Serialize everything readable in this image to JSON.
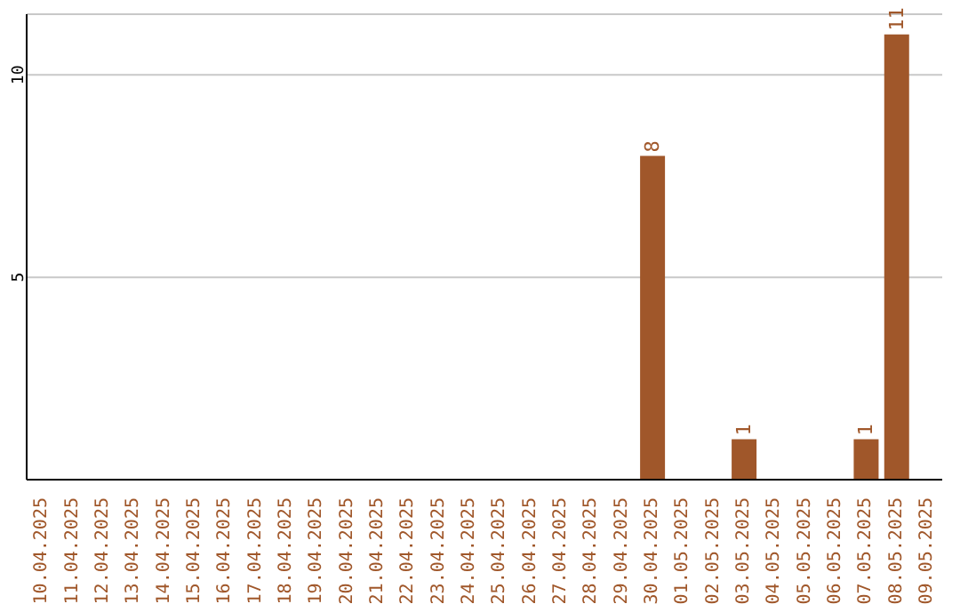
{
  "chart_data": {
    "type": "bar",
    "categories": [
      "10.04.2025",
      "11.04.2025",
      "12.04.2025",
      "13.04.2025",
      "14.04.2025",
      "15.04.2025",
      "16.04.2025",
      "17.04.2025",
      "18.04.2025",
      "19.04.2025",
      "20.04.2025",
      "21.04.2025",
      "22.04.2025",
      "23.04.2025",
      "24.04.2025",
      "25.04.2025",
      "26.04.2025",
      "27.04.2025",
      "28.04.2025",
      "29.04.2025",
      "30.04.2025",
      "01.05.2025",
      "02.05.2025",
      "03.05.2025",
      "04.05.2025",
      "05.05.2025",
      "06.05.2025",
      "07.05.2025",
      "08.05.2025",
      "09.05.2025"
    ],
    "values": [
      0,
      0,
      0,
      0,
      0,
      0,
      0,
      0,
      0,
      0,
      0,
      0,
      0,
      0,
      0,
      0,
      0,
      0,
      0,
      0,
      8,
      0,
      0,
      1,
      0,
      0,
      0,
      1,
      11,
      0
    ],
    "value_labels": [
      null,
      null,
      null,
      null,
      null,
      null,
      null,
      null,
      null,
      null,
      null,
      null,
      null,
      null,
      null,
      null,
      null,
      null,
      null,
      null,
      "8",
      null,
      null,
      "1",
      null,
      null,
      null,
      "1",
      "11",
      null
    ],
    "color": "#a0572a",
    "ylim": [
      0,
      11.5
    ],
    "yticks": [
      5,
      10
    ],
    "grid": "y"
  }
}
